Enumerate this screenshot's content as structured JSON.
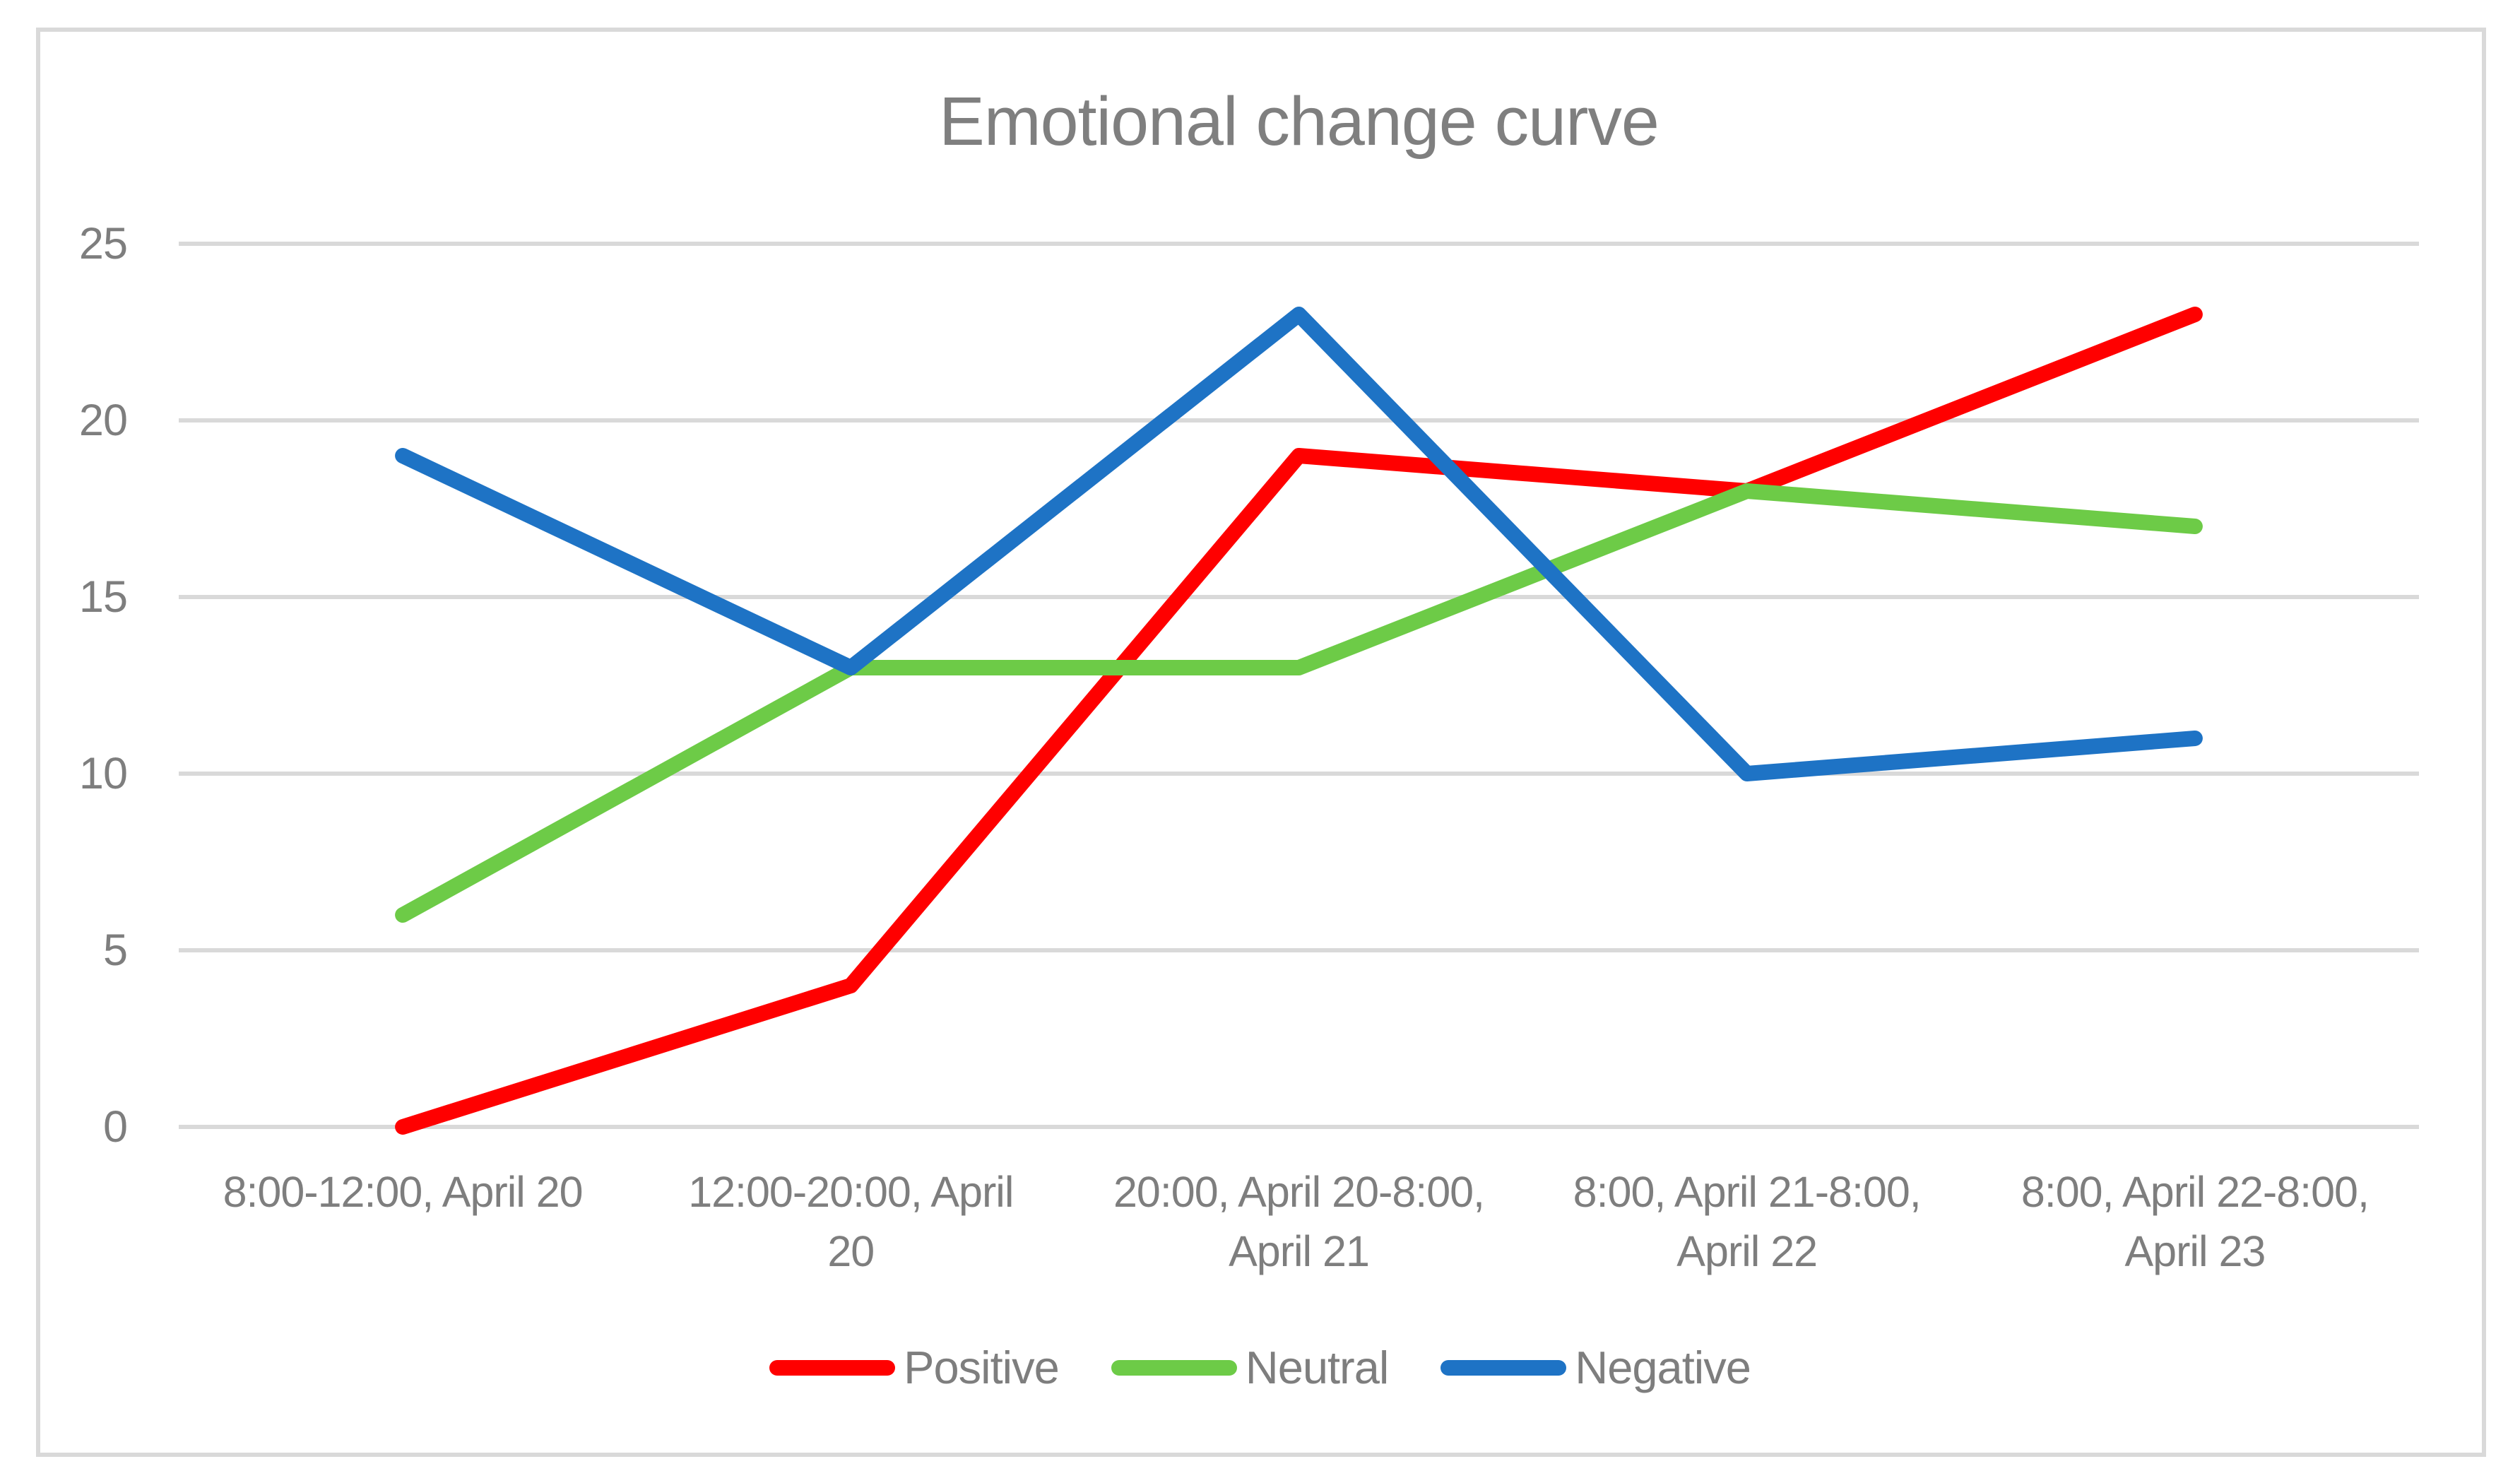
{
  "chart": {
    "title": "Emotional change curve"
  },
  "colors": {
    "background": "#FFFFFF",
    "border": "#D9D9D9",
    "gridline": "#D9D9D9",
    "axis_text": "#7E7E7E",
    "title_text": "#7F7F7F",
    "positive": "#FF0000",
    "neutral": "#6DCB47",
    "negative": "#1E73C5"
  },
  "chart_data": {
    "type": "line",
    "title": "Emotional change curve",
    "xlabel": "",
    "ylabel": "",
    "categories": [
      "8:00-12:00, April 20",
      "12:00-20:00, April 20",
      "20:00, April 20-8:00, April 21",
      "8:00, April 21-8:00, April 22",
      "8:00, April 22-8:00, April 23"
    ],
    "category_display_lines": [
      [
        "8:00-12:00, April 20"
      ],
      [
        "12:00-20:00, April",
        "20"
      ],
      [
        "20:00, April 20-8:00,",
        "April 21"
      ],
      [
        "8:00, April 21-8:00,",
        "April 22"
      ],
      [
        "8:00, April 22-8:00,",
        "April 23"
      ]
    ],
    "series": [
      {
        "name": "Positive",
        "color": "#FF0000",
        "values": [
          0,
          4,
          19,
          18,
          23
        ]
      },
      {
        "name": "Neutral",
        "color": "#6DCB47",
        "values": [
          6,
          13,
          13,
          18,
          17
        ]
      },
      {
        "name": "Negative",
        "color": "#1E73C5",
        "values": [
          19,
          13,
          23,
          10,
          11
        ]
      }
    ],
    "ylim": [
      0,
      25
    ],
    "yticks": [
      0,
      5,
      10,
      15,
      20,
      25
    ],
    "grid": true,
    "legend_position": "bottom"
  }
}
